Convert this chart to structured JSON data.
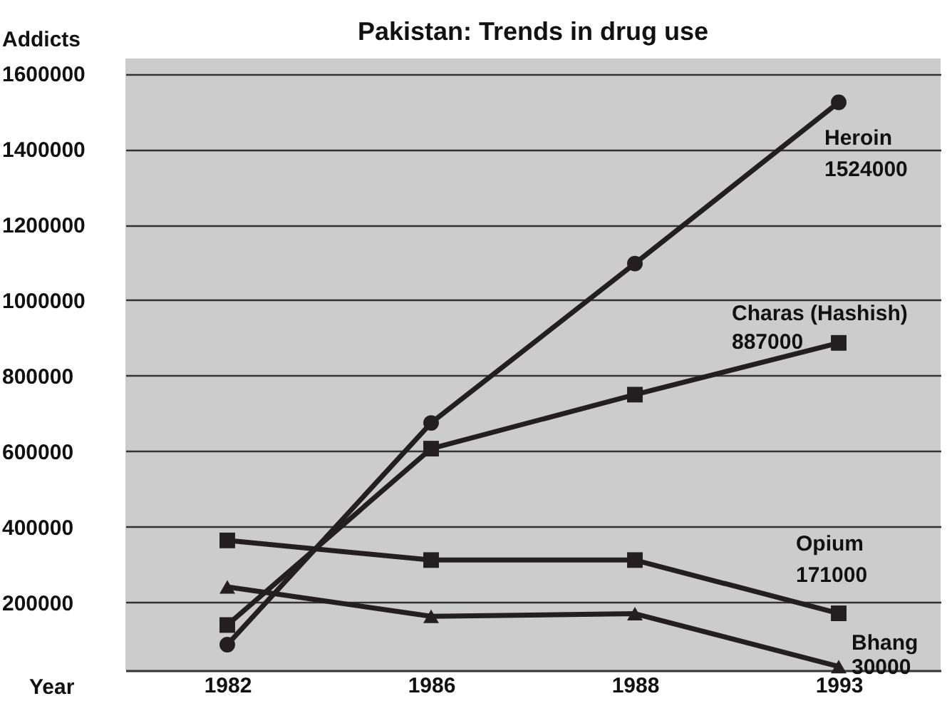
{
  "chart_data": {
    "type": "line",
    "title": "Pakistan: Trends in drug use",
    "xlabel": "Year",
    "ylabel": "Addicts",
    "categories": [
      "1982",
      "1986",
      "1988",
      "1993"
    ],
    "series": [
      {
        "name": "Heroin",
        "color": "#231f20",
        "marker": "circle",
        "values": [
          88000,
          675000,
          1097000,
          1524000
        ],
        "value_labels": [
          null,
          null,
          null,
          "1524000"
        ]
      },
      {
        "name": "Charas (Hashish)",
        "color": "#231f20",
        "marker": "square",
        "values": [
          140000,
          607000,
          750000,
          887000
        ],
        "value_labels": [
          null,
          null,
          null,
          "887000"
        ]
      },
      {
        "name": "Opium",
        "color": "#231f20",
        "marker": "square",
        "values": [
          364000,
          312000,
          312000,
          171000
        ],
        "value_labels": [
          null,
          null,
          null,
          "171000"
        ]
      },
      {
        "name": "Bhang",
        "color": "#231f20",
        "marker": "triangle",
        "values": [
          241000,
          163000,
          170000,
          30000
        ],
        "value_labels": [
          null,
          null,
          null,
          "30000"
        ]
      }
    ],
    "ylim": [
      20000,
      1640000
    ],
    "yticks": [
      200000,
      400000,
      600000,
      800000,
      1000000,
      1200000,
      1400000,
      1600000
    ],
    "grid": "y",
    "legend": false
  }
}
